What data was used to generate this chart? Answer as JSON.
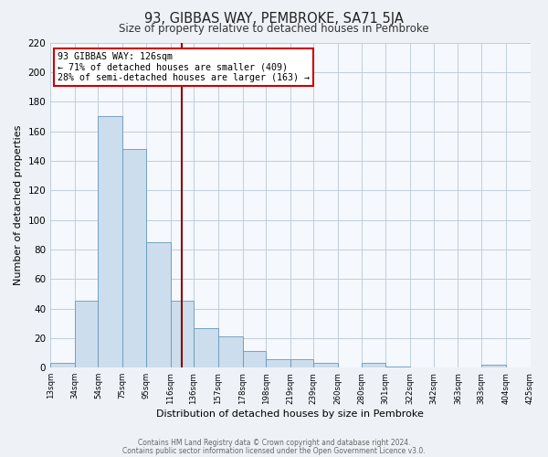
{
  "title": "93, GIBBAS WAY, PEMBROKE, SA71 5JA",
  "subtitle": "Size of property relative to detached houses in Pembroke",
  "xlabel": "Distribution of detached houses by size in Pembroke",
  "ylabel": "Number of detached properties",
  "bin_labels": [
    "13sqm",
    "34sqm",
    "54sqm",
    "75sqm",
    "95sqm",
    "116sqm",
    "136sqm",
    "157sqm",
    "178sqm",
    "198sqm",
    "219sqm",
    "239sqm",
    "260sqm",
    "280sqm",
    "301sqm",
    "322sqm",
    "342sqm",
    "363sqm",
    "383sqm",
    "404sqm",
    "425sqm"
  ],
  "bar_heights": [
    3,
    45,
    170,
    148,
    85,
    45,
    27,
    21,
    11,
    6,
    6,
    3,
    0,
    3,
    1,
    0,
    0,
    0,
    2,
    0
  ],
  "bar_color": "#ccdded",
  "bar_edge_color": "#6699bb",
  "vline_x": 126,
  "bin_edges": [
    13,
    34,
    54,
    75,
    95,
    116,
    136,
    157,
    178,
    198,
    219,
    239,
    260,
    280,
    301,
    322,
    342,
    363,
    383,
    404,
    425
  ],
  "annotation_title": "93 GIBBAS WAY: 126sqm",
  "annotation_line1": "← 71% of detached houses are smaller (409)",
  "annotation_line2": "28% of semi-detached houses are larger (163) →",
  "annotation_box_color": "#ffffff",
  "annotation_border_color": "#cc0000",
  "vline_color": "#8b0000",
  "ylim": [
    0,
    220
  ],
  "yticks": [
    0,
    20,
    40,
    60,
    80,
    100,
    120,
    140,
    160,
    180,
    200,
    220
  ],
  "footer1": "Contains HM Land Registry data © Crown copyright and database right 2024.",
  "footer2": "Contains public sector information licensed under the Open Government Licence v3.0.",
  "bg_color": "#eef2f7",
  "plot_bg_color": "#f5f8fc"
}
